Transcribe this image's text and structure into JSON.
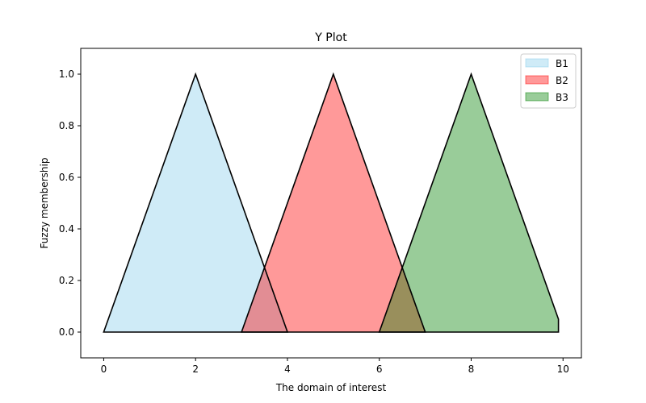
{
  "chart_data": {
    "type": "area",
    "title": "Y Plot",
    "xlabel": "The domain of interest",
    "ylabel": "Fuzzy membership",
    "xlim": [
      -0.5,
      10.4
    ],
    "ylim": [
      -0.1,
      1.1
    ],
    "xticks": [
      0,
      2,
      4,
      6,
      8,
      10
    ],
    "yticks": [
      0.0,
      0.2,
      0.4,
      0.6,
      0.8,
      1.0
    ],
    "xtick_labels": [
      "0",
      "2",
      "4",
      "6",
      "8",
      "10"
    ],
    "ytick_labels": [
      "0.0",
      "0.2",
      "0.4",
      "0.6",
      "0.8",
      "1.0"
    ],
    "grid": false,
    "legend_position": "top-right",
    "series": [
      {
        "name": "B1",
        "color": "#87CEEB",
        "alpha": 0.4,
        "points": [
          [
            0,
            0
          ],
          [
            2,
            1
          ],
          [
            4,
            0
          ]
        ]
      },
      {
        "name": "B2",
        "color": "#FF0000",
        "alpha": 0.4,
        "points": [
          [
            3,
            0
          ],
          [
            5,
            1
          ],
          [
            7,
            0
          ]
        ]
      },
      {
        "name": "B3",
        "color": "#008000",
        "alpha": 0.4,
        "points": [
          [
            6,
            0
          ],
          [
            8,
            1
          ],
          [
            9.9,
            0.05
          ],
          [
            9.9,
            0
          ]
        ]
      }
    ]
  }
}
